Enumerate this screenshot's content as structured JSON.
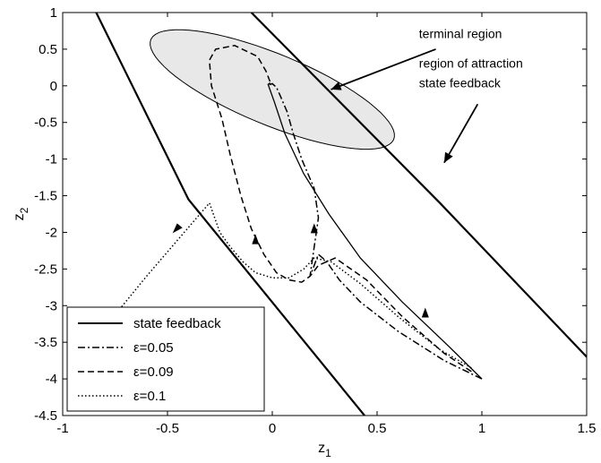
{
  "chart_data": {
    "type": "line",
    "xlabel": "z",
    "xlabel_sub": "1",
    "ylabel": "z",
    "ylabel_sub": "2",
    "xlim": [
      -1,
      1.5
    ],
    "ylim": [
      -4.5,
      1
    ],
    "xticks": [
      -1,
      -0.5,
      0,
      0.5,
      1,
      1.5
    ],
    "xtick_labels": [
      "-1",
      "-0.5",
      "0",
      "0.5",
      "1",
      "1.5"
    ],
    "yticks": [
      1,
      0.5,
      0,
      -0.5,
      -1,
      -1.5,
      -2,
      -2.5,
      -3,
      -3.5,
      -4,
      -4.5
    ],
    "ytick_labels": [
      "1",
      "0.5",
      "0",
      "-0.5",
      "-1",
      "-1.5",
      "-2",
      "-2.5",
      "-3",
      "-3.5",
      "-4",
      "-4.5"
    ],
    "grid": false,
    "legend_position": "bottom-left",
    "series": [
      {
        "name": "state feedback",
        "style": "solid",
        "x": [
          1.0,
          0.84,
          0.62,
          0.42,
          0.27,
          0.15,
          0.06,
          0.01,
          -0.02,
          -0.01
        ],
        "y": [
          -4.0,
          -3.55,
          -2.95,
          -2.35,
          -1.75,
          -1.2,
          -0.65,
          -0.22,
          0.02,
          0.04
        ]
      },
      {
        "name": "ε=0.05",
        "style": "dashdot",
        "x": [
          1.0,
          0.82,
          0.6,
          0.42,
          0.32,
          0.26,
          0.22,
          0.2,
          0.18,
          0.2,
          0.22,
          0.2,
          0.14,
          0.1,
          0.07,
          0.04,
          0.02,
          0.0,
          -0.01,
          0.0
        ],
        "y": [
          -4.0,
          -3.75,
          -3.35,
          -2.95,
          -2.65,
          -2.4,
          -2.3,
          -2.45,
          -2.6,
          -2.2,
          -1.8,
          -1.4,
          -1.0,
          -0.65,
          -0.35,
          -0.15,
          -0.02,
          0.03,
          0.02,
          0.0
        ]
      },
      {
        "name": "ε=0.09",
        "style": "dashed",
        "x": [
          0.95,
          0.82,
          0.62,
          0.45,
          0.3,
          0.22,
          0.18,
          0.14,
          0.08,
          0.02,
          -0.04,
          -0.1,
          -0.15,
          -0.2,
          -0.24,
          -0.29,
          -0.3,
          -0.27,
          -0.18,
          -0.07,
          -0.03,
          -0.01
        ],
        "y": [
          -3.9,
          -3.65,
          -3.15,
          -2.65,
          -2.35,
          -2.45,
          -2.6,
          -2.68,
          -2.65,
          -2.55,
          -2.3,
          -1.95,
          -1.5,
          -0.95,
          -0.45,
          0.0,
          0.35,
          0.5,
          0.55,
          0.4,
          0.2,
          0.05
        ]
      },
      {
        "name": "ε=0.1",
        "style": "dotted",
        "x": [
          0.95,
          0.8,
          0.6,
          0.42,
          0.28,
          0.2,
          0.15,
          0.08,
          0.0,
          -0.08,
          -0.14,
          -0.2,
          -0.25,
          -0.3,
          -0.45,
          -0.6,
          -0.8
        ],
        "y": [
          -3.85,
          -3.6,
          -3.15,
          -2.7,
          -2.4,
          -2.35,
          -2.5,
          -2.62,
          -2.62,
          -2.55,
          -2.4,
          -2.2,
          -2.0,
          -1.6,
          -2.1,
          -2.6,
          -3.3
        ]
      }
    ],
    "boundary_lines": {
      "style": "solid_thick",
      "left": {
        "x": [
          -0.84,
          -0.4,
          0.44
        ],
        "y": [
          1.0,
          -1.55,
          -4.5
        ]
      },
      "right": {
        "x": [
          -0.1,
          0.8,
          1.5
        ],
        "y": [
          1.0,
          -1.6,
          -3.7
        ]
      }
    },
    "terminal_region": {
      "center": [
        0.0,
        -0.05
      ],
      "semi_major": 0.95,
      "semi_minor": 0.32,
      "angle_deg": -57,
      "fill": "#e8e8e8"
    },
    "arrow_markers": [
      {
        "x": -0.08,
        "y": -2.1,
        "dir": "up"
      },
      {
        "x": 0.2,
        "y": -1.95,
        "dir": "up"
      },
      {
        "x": 0.73,
        "y": -3.1,
        "dir": "up"
      },
      {
        "x": -0.45,
        "y": -1.95,
        "dir": "down-left"
      }
    ],
    "annotations": [
      {
        "text": "terminal region",
        "text_x": 0.7,
        "text_y": 0.65,
        "arrow_from": [
          0.78,
          0.5
        ],
        "arrow_to": [
          0.28,
          -0.05
        ]
      },
      {
        "text": "region of attraction",
        "text_x": 0.7,
        "text_y": 0.25,
        "text2": "state feedback",
        "text2_x": 0.7,
        "text2_y": -0.02,
        "arrow_from": [
          0.98,
          -0.25
        ],
        "arrow_to": [
          0.82,
          -1.05
        ]
      }
    ]
  }
}
